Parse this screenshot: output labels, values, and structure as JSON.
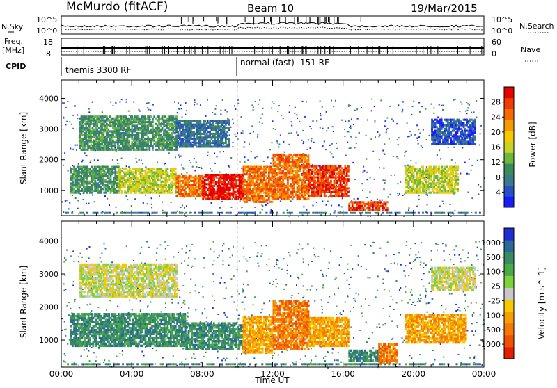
{
  "header": {
    "station": "McMurdo (fitACF)",
    "beam": "Beam 10",
    "date": "19/Mar/2015"
  },
  "strips": {
    "nsky_label": "N.Sky",
    "nsky_ticks": [
      "10^5",
      "10^0"
    ],
    "nsearch_label": "N.Search",
    "nsearch_ticks": [
      "10^5",
      "10^0"
    ],
    "freq_label_1": "Freq.",
    "freq_label_2": "[MHz]",
    "freq_ticks": [
      "18",
      "8"
    ],
    "nave_label": "Nave",
    "nave_ticks": [
      "60",
      "0"
    ],
    "cpid_label": "CPID",
    "cpid_1": "themis 3300 RF",
    "cpid_2": "normal (fast) -151 RF",
    "cpid_switch_hour": 10.0
  },
  "chart_data": [
    {
      "type": "heatmap",
      "name": "power",
      "ylabel": "Slant Range [km]",
      "xlabel": "",
      "xlim": [
        0,
        24
      ],
      "ylim": [
        180,
        4600
      ],
      "yticks": [
        "1000",
        "2000",
        "3000",
        "4000"
      ],
      "colorbar": {
        "label": "Power [dB]",
        "ticks": [
          "4",
          "8",
          "12",
          "16",
          "20",
          "24",
          "28"
        ],
        "colors": [
          "#1a1aff",
          "#2850c8",
          "#3a7a8a",
          "#3c8a5a",
          "#6ab83c",
          "#c8d228",
          "#f5c800",
          "#f59a00",
          "#f56a00",
          "#f03c00",
          "#e60000"
        ]
      },
      "regions": [
        {
          "t0": 0.5,
          "t1": 3.2,
          "r0": 900,
          "r1": 1800,
          "level": 3
        },
        {
          "t0": 3.2,
          "t1": 6.5,
          "r0": 900,
          "r1": 1700,
          "level": 5
        },
        {
          "t0": 6.5,
          "t1": 8.0,
          "r0": 800,
          "r1": 1500,
          "level": 8
        },
        {
          "t0": 8.0,
          "t1": 10.3,
          "r0": 700,
          "r1": 1500,
          "level": 10
        },
        {
          "t0": 10.3,
          "t1": 12.0,
          "r0": 600,
          "r1": 1800,
          "level": 8
        },
        {
          "t0": 12.0,
          "t1": 14.0,
          "r0": 700,
          "r1": 2200,
          "level": 8
        },
        {
          "t0": 14.0,
          "t1": 16.3,
          "r0": 800,
          "r1": 1800,
          "level": 9
        },
        {
          "t0": 16.3,
          "t1": 18.5,
          "r0": 350,
          "r1": 600,
          "level": 9
        },
        {
          "t0": 19.5,
          "t1": 22.5,
          "r0": 900,
          "r1": 1800,
          "level": 5
        },
        {
          "t0": 1.0,
          "t1": 6.5,
          "r0": 2300,
          "r1": 3400,
          "level": 3
        },
        {
          "t0": 6.5,
          "t1": 9.5,
          "r0": 2400,
          "r1": 3300,
          "level": 2
        },
        {
          "t0": 21.0,
          "t1": 23.5,
          "r0": 2500,
          "r1": 3300,
          "level": 1
        }
      ]
    },
    {
      "type": "heatmap",
      "name": "velocity",
      "ylabel": "Slant Range [km]",
      "xlabel": "Time UT",
      "xlim": [
        0,
        24
      ],
      "ylim": [
        180,
        4600
      ],
      "xticks": [
        "00:00",
        "04:00",
        "08:00",
        "12:00",
        "16:00",
        "20:00",
        "00:00"
      ],
      "yticks": [
        "1000",
        "2000",
        "3000",
        "4000"
      ],
      "colorbar": {
        "label": "Velocity [m s^-1]",
        "ticks": [
          "1000",
          "500",
          "100",
          "25",
          "-25",
          "-100",
          "-500",
          "-1000"
        ],
        "colors": [
          "#1e2ed2",
          "#2a6a9a",
          "#3a8a60",
          "#4aaa4a",
          "#7ed23c",
          "#c8c8c8",
          "#f5c800",
          "#f5a000",
          "#f57800",
          "#f05000",
          "#e61e00"
        ]
      },
      "regions": [
        {
          "t0": 0.5,
          "t1": 7.0,
          "r0": 800,
          "r1": 1800,
          "level": 2
        },
        {
          "t0": 7.0,
          "t1": 10.3,
          "r0": 700,
          "r1": 1500,
          "level": 2
        },
        {
          "t0": 10.3,
          "t1": 12.0,
          "r0": 600,
          "r1": 1700,
          "level": 7
        },
        {
          "t0": 12.0,
          "t1": 14.0,
          "r0": 700,
          "r1": 2200,
          "level": 8
        },
        {
          "t0": 14.0,
          "t1": 16.3,
          "r0": 800,
          "r1": 1700,
          "level": 7
        },
        {
          "t0": 16.3,
          "t1": 18.0,
          "r0": 350,
          "r1": 700,
          "level": 2
        },
        {
          "t0": 18.0,
          "t1": 19.0,
          "r0": 300,
          "r1": 900,
          "level": 8
        },
        {
          "t0": 19.5,
          "t1": 23.0,
          "r0": 900,
          "r1": 1800,
          "level": 7
        },
        {
          "t0": 1.0,
          "t1": 6.5,
          "r0": 2300,
          "r1": 3300,
          "level": 5
        },
        {
          "t0": 21.0,
          "t1": 23.5,
          "r0": 2500,
          "r1": 3200,
          "level": 5
        }
      ]
    }
  ]
}
